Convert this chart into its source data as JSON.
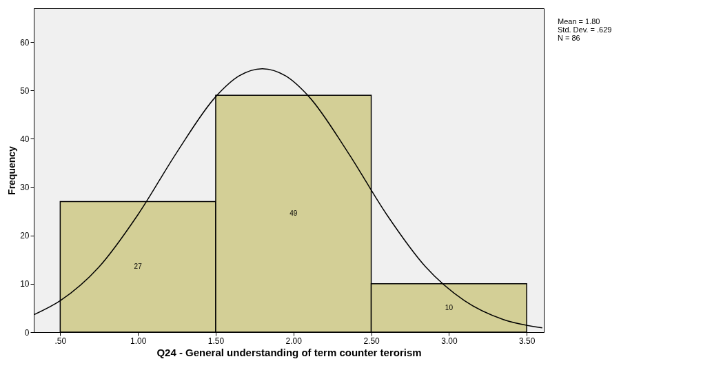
{
  "chart_data": {
    "type": "histogram",
    "xlabel": "Q24 - General understanding of term counter terorism",
    "ylabel": "Frequency",
    "bins": [
      0.5,
      1.5,
      2.5,
      3.5
    ],
    "values": [
      27,
      49,
      10
    ],
    "color": "#d3cf96",
    "value_labels": [
      "27",
      "49",
      "10"
    ],
    "series": [
      {
        "type": "line",
        "color": "#000000",
        "x": [
          0.33,
          0.5,
          0.75,
          1.0,
          1.25,
          1.5,
          1.65,
          1.8,
          1.95,
          2.1,
          2.35,
          2.6,
          2.85,
          3.1,
          3.35,
          3.6
        ],
        "values": [
          3.6,
          6.5,
          13.5,
          24.3,
          37.2,
          48.7,
          53.0,
          54.5,
          53.0,
          48.7,
          37.2,
          24.3,
          13.5,
          6.5,
          2.6,
          0.9
        ]
      }
    ],
    "xlim": [
      0.33,
      3.61
    ],
    "xticks": [
      {
        "value": 0.5,
        "label": ".50"
      },
      {
        "value": 1,
        "label": "1.00"
      },
      {
        "value": 1.5,
        "label": "1.50"
      },
      {
        "value": 2,
        "label": "2.00"
      },
      {
        "value": 2.5,
        "label": "2.50"
      },
      {
        "value": 3,
        "label": "3.00"
      },
      {
        "value": 3.5,
        "label": "3.50"
      }
    ],
    "ylim": [
      0,
      67
    ],
    "yticks": [
      0,
      10,
      20,
      30,
      40,
      50,
      60
    ],
    "grid": false,
    "annotations": [
      "Mean = 1.80",
      "Std. Dev. = .629",
      "N = 86"
    ]
  }
}
